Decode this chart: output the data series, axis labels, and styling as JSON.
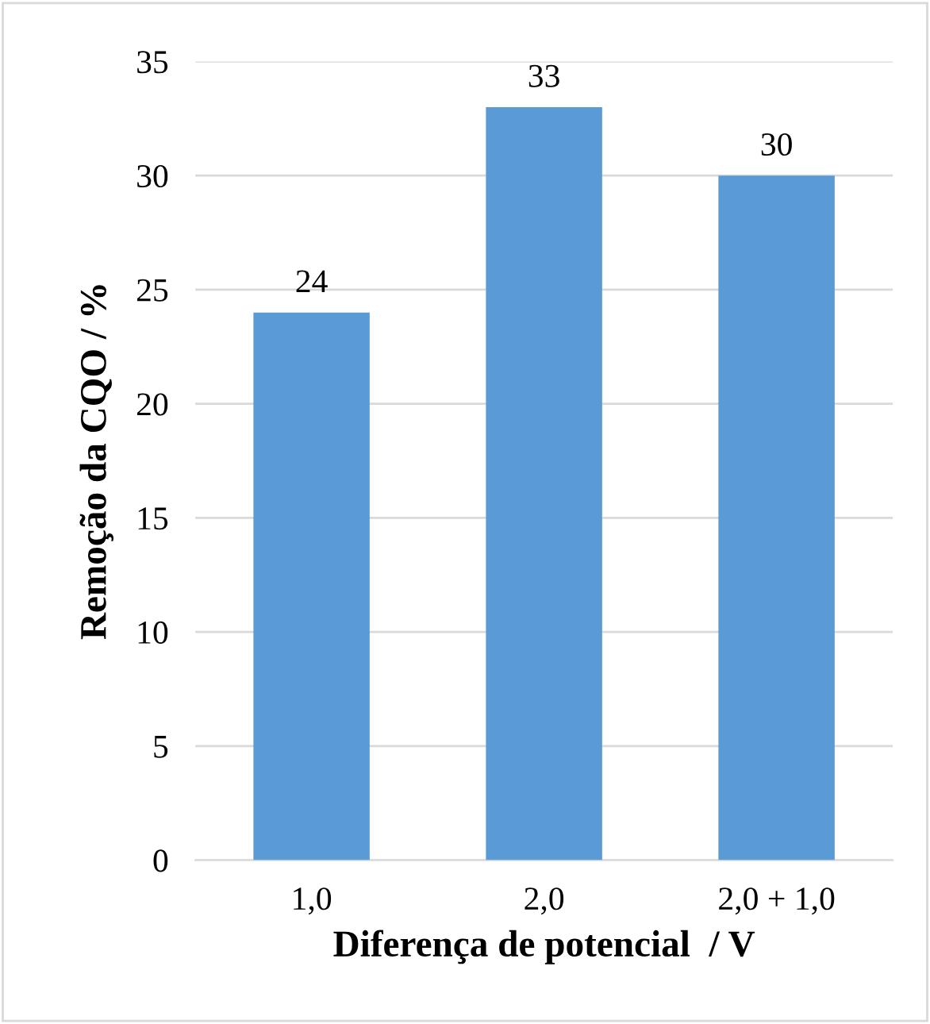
{
  "chart_data": {
    "type": "bar",
    "xlabel": "Diferença de potencial  / V",
    "ylabel": "Remoção da CQO / %",
    "categories": [
      "1,0",
      "2,0",
      "2,0 + 1,0"
    ],
    "values": [
      24,
      33,
      30
    ],
    "color": "#5b9bd5",
    "ylim": [
      0,
      35
    ],
    "yticks": [
      0,
      5,
      10,
      15,
      20,
      25,
      30,
      35
    ],
    "grid": "y",
    "data_labels": true
  }
}
